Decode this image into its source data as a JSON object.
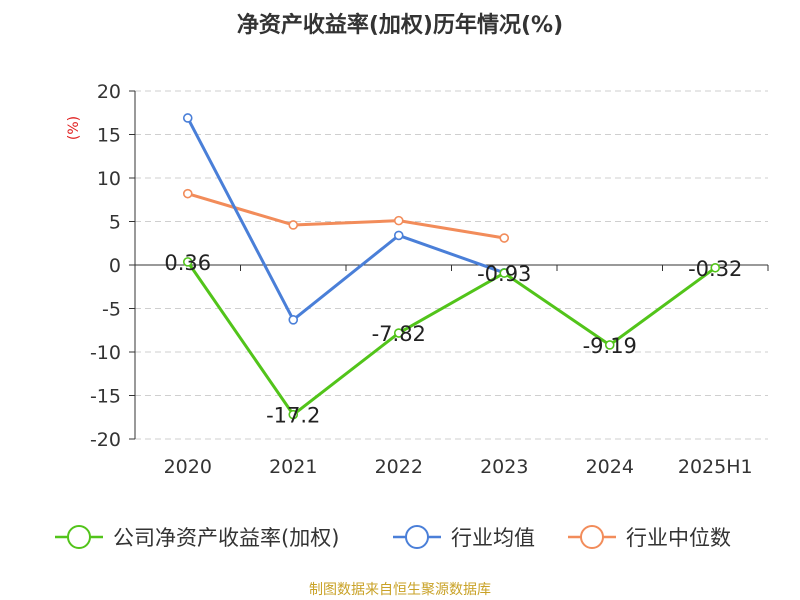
{
  "chart_data": {
    "type": "line",
    "title": "净资产收益率(加权)历年情况(%)",
    "ylabel": "(%)",
    "xlabel": "",
    "categories": [
      "2020",
      "2021",
      "2022",
      "2023",
      "2024",
      "2025H1"
    ],
    "ylim": [
      -20,
      20
    ],
    "yticks": [
      20,
      15,
      10,
      5,
      0,
      -5,
      -10,
      -15,
      -20
    ],
    "grid": true,
    "legend_position": "bottom",
    "series": [
      {
        "name": "公司净资产收益率(加权)",
        "color": "#52c41a",
        "values": [
          0.36,
          -17.2,
          -7.82,
          -0.93,
          -9.19,
          -0.32
        ],
        "labels": [
          "0.36",
          "-17.2",
          "-7.82",
          "-0.93",
          "-9.19",
          "-0.32"
        ]
      },
      {
        "name": "行业均值",
        "color": "#4a7fd8",
        "values": [
          16.9,
          -6.3,
          3.4,
          -0.9,
          null,
          null
        ]
      },
      {
        "name": "行业中位数",
        "color": "#f28c5a",
        "values": [
          8.2,
          4.6,
          5.1,
          3.1,
          null,
          null
        ]
      }
    ],
    "source": "制图数据来自恒生聚源数据库",
    "source_color": "#c9a227",
    "ylabel_color": "#e02020"
  }
}
